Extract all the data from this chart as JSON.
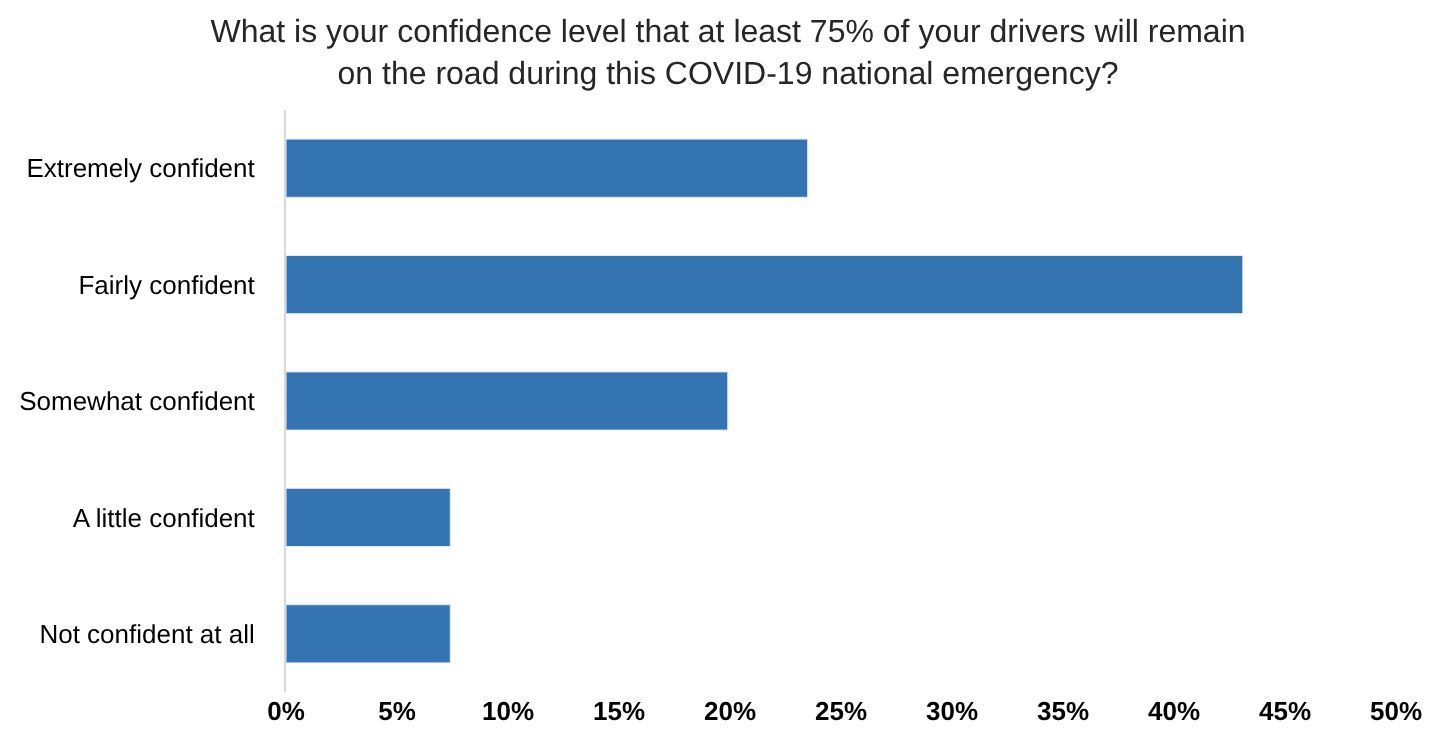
{
  "chart_data": {
    "type": "bar",
    "orientation": "horizontal",
    "title": "What is your confidence level that at least 75% of your drivers will remain\non the road during this COVID-19 national emergency?",
    "categories": [
      "Extremely confident",
      "Fairly confident",
      "Somewhat confident",
      "A little confident",
      "Not confident at all"
    ],
    "values": [
      23.5,
      43.1,
      19.9,
      7.4,
      7.4
    ],
    "color": "#3574b3",
    "xlim": [
      0,
      50
    ],
    "xticks": [
      {
        "value": 0,
        "label": "0%"
      },
      {
        "value": 5,
        "label": "5%"
      },
      {
        "value": 10,
        "label": "10%"
      },
      {
        "value": 15,
        "label": "15%"
      },
      {
        "value": 20,
        "label": "20%"
      },
      {
        "value": 25,
        "label": "25%"
      },
      {
        "value": 30,
        "label": "30%"
      },
      {
        "value": 35,
        "label": "35%"
      },
      {
        "value": 40,
        "label": "40%"
      },
      {
        "value": 45,
        "label": "45%"
      },
      {
        "value": 50,
        "label": "50%"
      }
    ],
    "grid": false
  }
}
